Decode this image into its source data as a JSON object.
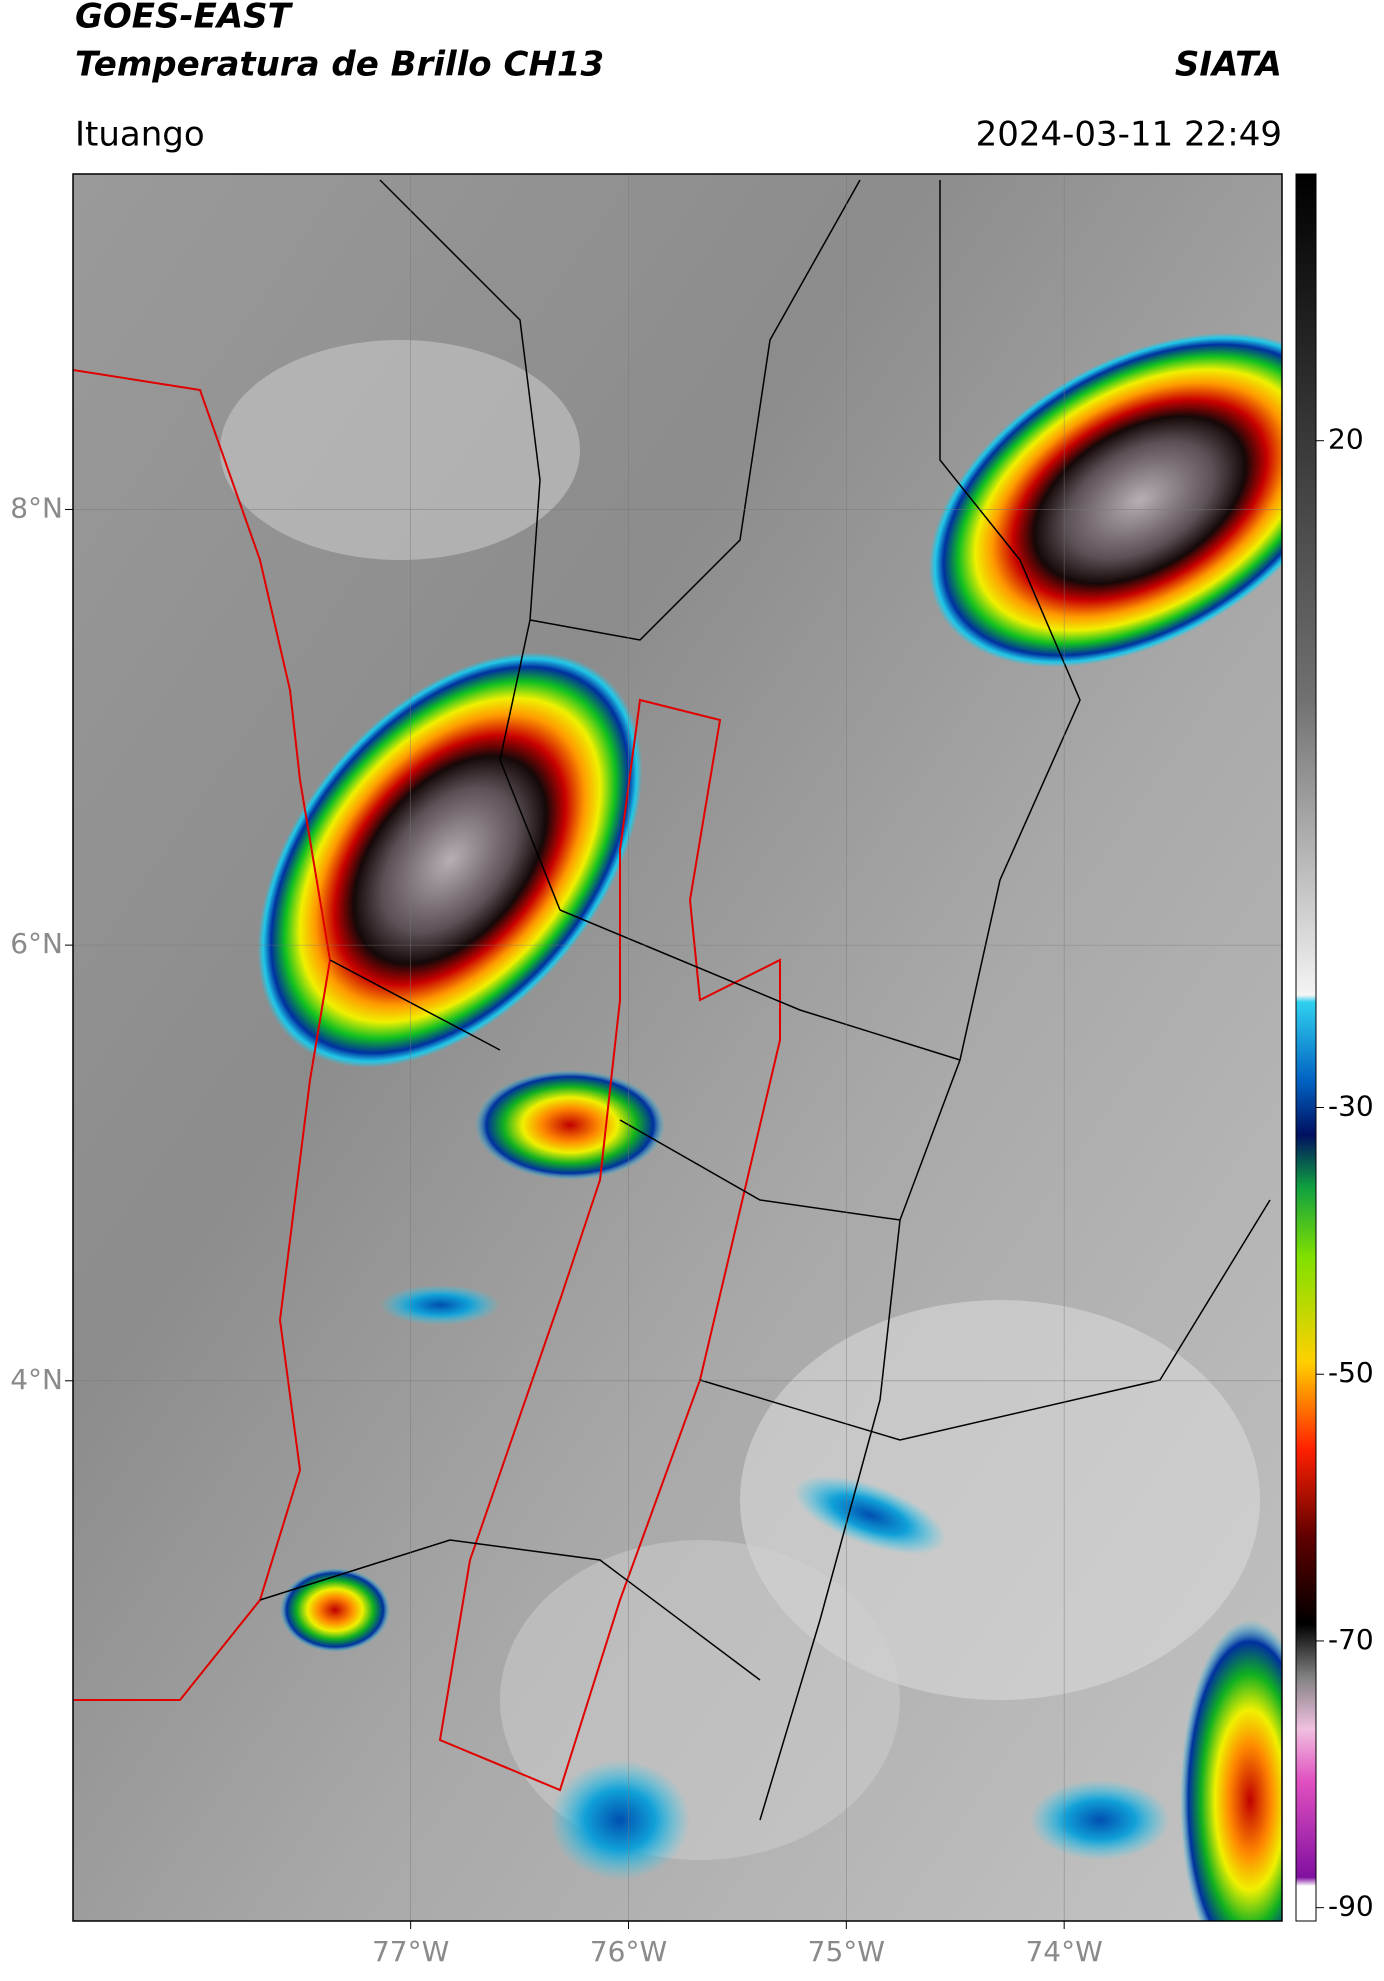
{
  "header": {
    "title": "GOES-EAST",
    "subtitle": "Temperatura de Brillo CH13",
    "source": "SIATA",
    "location": "Ituango",
    "datetime": "2024-03-11 22:49"
  },
  "map": {
    "lat_range": [
      1.52,
      9.54
    ],
    "lon_range": [
      -78.55,
      -73.0
    ],
    "lat_ticks": [
      {
        "value": 8,
        "label": "8°N"
      },
      {
        "value": 6,
        "label": "6°N"
      },
      {
        "value": 4,
        "label": "4°N"
      }
    ],
    "lon_ticks": [
      {
        "value": -77,
        "label": "77°W"
      },
      {
        "value": -76,
        "label": "76°W"
      },
      {
        "value": -75,
        "label": "75°W"
      },
      {
        "value": -74,
        "label": "74°W"
      }
    ]
  },
  "colorbar": {
    "range": [
      -91,
      40
    ],
    "ticks": [
      20,
      -30,
      -50,
      -70,
      -90
    ]
  }
}
